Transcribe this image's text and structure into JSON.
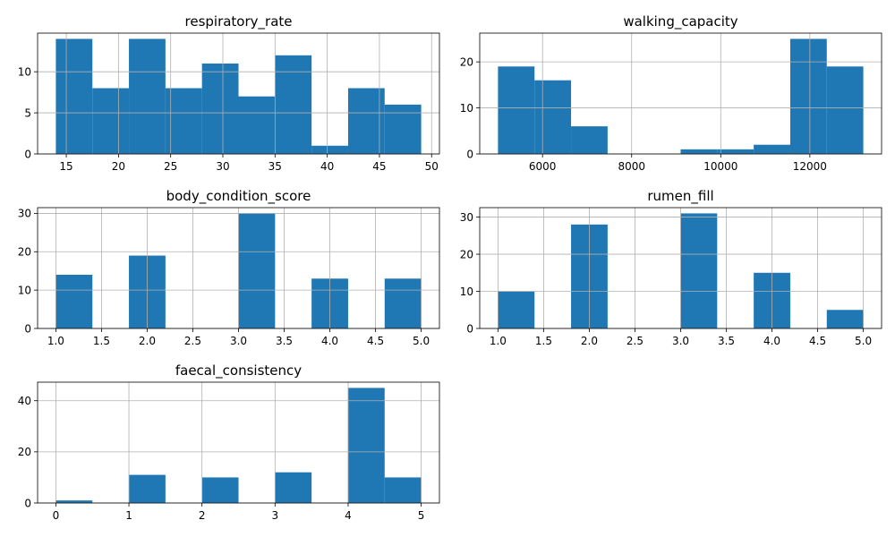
{
  "chart_data": [
    {
      "type": "bar",
      "subtype": "histogram",
      "title": "respiratory_rate",
      "color": "#1f77b4",
      "grid": true,
      "bins": [
        {
          "x0": 14.0,
          "x1": 17.5,
          "count": 14
        },
        {
          "x0": 17.5,
          "x1": 21.0,
          "count": 8
        },
        {
          "x0": 21.0,
          "x1": 24.5,
          "count": 14
        },
        {
          "x0": 24.5,
          "x1": 28.0,
          "count": 8
        },
        {
          "x0": 28.0,
          "x1": 31.5,
          "count": 11
        },
        {
          "x0": 31.5,
          "x1": 35.0,
          "count": 7
        },
        {
          "x0": 35.0,
          "x1": 38.5,
          "count": 12
        },
        {
          "x0": 38.5,
          "x1": 42.0,
          "count": 1
        },
        {
          "x0": 42.0,
          "x1": 45.5,
          "count": 8
        },
        {
          "x0": 45.5,
          "x1": 49.0,
          "count": 6
        }
      ],
      "xticks": [
        15,
        20,
        25,
        30,
        35,
        40,
        45,
        50
      ],
      "xtick_labels": [
        "15",
        "20",
        "25",
        "30",
        "35",
        "40",
        "45",
        "50"
      ],
      "yticks": [
        0,
        5,
        10
      ],
      "ytick_labels": [
        "0",
        "5",
        "10"
      ],
      "xlim": [
        12.25,
        50.75
      ],
      "ylim": [
        0,
        14.7
      ]
    },
    {
      "type": "bar",
      "subtype": "histogram",
      "title": "walking_capacity",
      "color": "#1f77b4",
      "grid": true,
      "bins": [
        {
          "x0": 5000,
          "x1": 5820,
          "count": 19
        },
        {
          "x0": 5820,
          "x1": 6640,
          "count": 16
        },
        {
          "x0": 6640,
          "x1": 7460,
          "count": 6
        },
        {
          "x0": 7460,
          "x1": 8280,
          "count": 0
        },
        {
          "x0": 8280,
          "x1": 9100,
          "count": 0
        },
        {
          "x0": 9100,
          "x1": 9920,
          "count": 1
        },
        {
          "x0": 9920,
          "x1": 10740,
          "count": 1
        },
        {
          "x0": 10740,
          "x1": 11560,
          "count": 2
        },
        {
          "x0": 11560,
          "x1": 12380,
          "count": 25
        },
        {
          "x0": 12380,
          "x1": 13200,
          "count": 19
        }
      ],
      "xticks": [
        6000,
        8000,
        10000,
        12000
      ],
      "xtick_labels": [
        "6000",
        "8000",
        "10000",
        "12000"
      ],
      "yticks": [
        0,
        10,
        20
      ],
      "ytick_labels": [
        "0",
        "10",
        "20"
      ],
      "xlim": [
        4590,
        13610
      ],
      "ylim": [
        0,
        26.25
      ]
    },
    {
      "type": "bar",
      "subtype": "histogram",
      "title": "body_condition_score",
      "color": "#1f77b4",
      "grid": true,
      "bins": [
        {
          "x0": 1.0,
          "x1": 1.4,
          "count": 14
        },
        {
          "x0": 1.4,
          "x1": 1.8,
          "count": 0
        },
        {
          "x0": 1.8,
          "x1": 2.2,
          "count": 19
        },
        {
          "x0": 2.2,
          "x1": 2.6,
          "count": 0
        },
        {
          "x0": 2.6,
          "x1": 3.0,
          "count": 0
        },
        {
          "x0": 3.0,
          "x1": 3.4,
          "count": 30
        },
        {
          "x0": 3.4,
          "x1": 3.8,
          "count": 0
        },
        {
          "x0": 3.8,
          "x1": 4.2,
          "count": 13
        },
        {
          "x0": 4.2,
          "x1": 4.6,
          "count": 0
        },
        {
          "x0": 4.6,
          "x1": 5.0,
          "count": 13
        }
      ],
      "xticks": [
        1.0,
        1.5,
        2.0,
        2.5,
        3.0,
        3.5,
        4.0,
        4.5,
        5.0
      ],
      "xtick_labels": [
        "1.0",
        "1.5",
        "2.0",
        "2.5",
        "3.0",
        "3.5",
        "4.0",
        "4.5",
        "5.0"
      ],
      "yticks": [
        0,
        10,
        20,
        30
      ],
      "ytick_labels": [
        "0",
        "10",
        "20",
        "30"
      ],
      "xlim": [
        0.8,
        5.2
      ],
      "ylim": [
        0,
        31.5
      ]
    },
    {
      "type": "bar",
      "subtype": "histogram",
      "title": "rumen_fill",
      "color": "#1f77b4",
      "grid": true,
      "bins": [
        {
          "x0": 1.0,
          "x1": 1.4,
          "count": 10
        },
        {
          "x0": 1.4,
          "x1": 1.8,
          "count": 0
        },
        {
          "x0": 1.8,
          "x1": 2.2,
          "count": 28
        },
        {
          "x0": 2.2,
          "x1": 2.6,
          "count": 0
        },
        {
          "x0": 2.6,
          "x1": 3.0,
          "count": 0
        },
        {
          "x0": 3.0,
          "x1": 3.4,
          "count": 31
        },
        {
          "x0": 3.4,
          "x1": 3.8,
          "count": 0
        },
        {
          "x0": 3.8,
          "x1": 4.2,
          "count": 15
        },
        {
          "x0": 4.2,
          "x1": 4.6,
          "count": 0
        },
        {
          "x0": 4.6,
          "x1": 5.0,
          "count": 5
        }
      ],
      "xticks": [
        1.0,
        1.5,
        2.0,
        2.5,
        3.0,
        3.5,
        4.0,
        4.5,
        5.0
      ],
      "xtick_labels": [
        "1.0",
        "1.5",
        "2.0",
        "2.5",
        "3.0",
        "3.5",
        "4.0",
        "4.5",
        "5.0"
      ],
      "yticks": [
        0,
        10,
        20,
        30
      ],
      "ytick_labels": [
        "0",
        "10",
        "20",
        "30"
      ],
      "xlim": [
        0.8,
        5.2
      ],
      "ylim": [
        0,
        32.55
      ]
    },
    {
      "type": "bar",
      "subtype": "histogram",
      "title": "faecal_consistency",
      "color": "#1f77b4",
      "grid": true,
      "bins": [
        {
          "x0": 0.0,
          "x1": 0.5,
          "count": 1
        },
        {
          "x0": 0.5,
          "x1": 1.0,
          "count": 0
        },
        {
          "x0": 1.0,
          "x1": 1.5,
          "count": 11
        },
        {
          "x0": 1.5,
          "x1": 2.0,
          "count": 0
        },
        {
          "x0": 2.0,
          "x1": 2.5,
          "count": 10
        },
        {
          "x0": 2.5,
          "x1": 3.0,
          "count": 0
        },
        {
          "x0": 3.0,
          "x1": 3.5,
          "count": 12
        },
        {
          "x0": 3.5,
          "x1": 4.0,
          "count": 0
        },
        {
          "x0": 4.0,
          "x1": 4.5,
          "count": 45
        },
        {
          "x0": 4.5,
          "x1": 5.0,
          "count": 10
        }
      ],
      "xticks": [
        0,
        1,
        2,
        3,
        4,
        5
      ],
      "xtick_labels": [
        "0",
        "1",
        "2",
        "3",
        "4",
        "5"
      ],
      "yticks": [
        0,
        20,
        40
      ],
      "ytick_labels": [
        "0",
        "20",
        "40"
      ],
      "xlim": [
        -0.25,
        5.25
      ],
      "ylim": [
        0,
        47.25
      ]
    }
  ]
}
